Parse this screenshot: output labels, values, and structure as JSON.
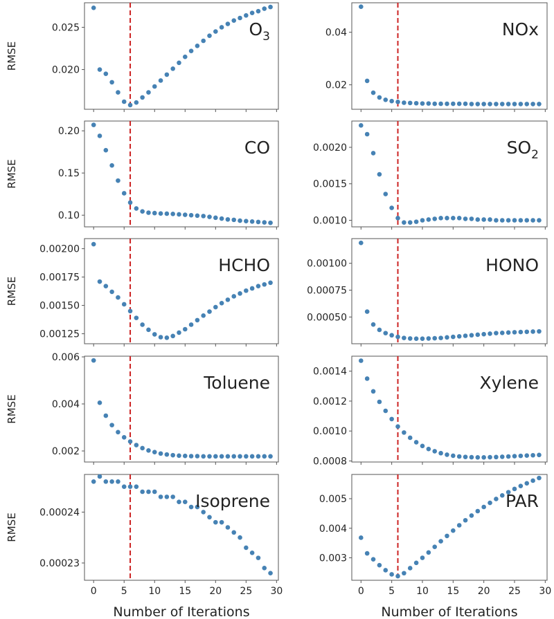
{
  "colors": {
    "points": "#4682b4",
    "marker_line": "#cc2222",
    "frame": "#555555"
  },
  "chart_data": [
    {
      "type": "scatter",
      "title": "O",
      "title_sub": "3",
      "ylabel": "RMSE",
      "xlabel": "",
      "x": [
        0,
        1,
        2,
        3,
        4,
        5,
        6,
        7,
        8,
        9,
        10,
        11,
        12,
        13,
        14,
        15,
        16,
        17,
        18,
        19,
        20,
        21,
        22,
        23,
        24,
        25,
        26,
        27,
        28,
        29
      ],
      "y": [
        0.0273,
        0.02,
        0.0195,
        0.0185,
        0.0173,
        0.0162,
        0.0158,
        0.0161,
        0.0167,
        0.0173,
        0.018,
        0.0187,
        0.0194,
        0.0201,
        0.0208,
        0.0215,
        0.0222,
        0.0228,
        0.0234,
        0.024,
        0.0245,
        0.025,
        0.0254,
        0.0258,
        0.0261,
        0.0264,
        0.0267,
        0.0269,
        0.0272,
        0.0274
      ],
      "xlim": [
        -1.5,
        30.3
      ],
      "ylim": [
        0.0153,
        0.0279
      ],
      "vline_x": 6,
      "xticks": [
        0,
        5,
        10,
        15,
        20,
        25,
        30
      ],
      "xtick_labels": [],
      "yticks": [
        0.02,
        0.025
      ],
      "ytick_labels": [
        "0.020",
        "0.025"
      ]
    },
    {
      "type": "scatter",
      "title": "NOx",
      "title_sub": "",
      "ylabel": "",
      "xlabel": "",
      "x": [
        0,
        1,
        2,
        3,
        4,
        5,
        6,
        7,
        8,
        9,
        10,
        11,
        12,
        13,
        14,
        15,
        16,
        17,
        18,
        19,
        20,
        21,
        22,
        23,
        24,
        25,
        26,
        27,
        28,
        29
      ],
      "y": [
        0.0497,
        0.0215,
        0.017,
        0.0152,
        0.0143,
        0.0138,
        0.0135,
        0.0132,
        0.0131,
        0.013,
        0.0129,
        0.0129,
        0.0128,
        0.0128,
        0.0128,
        0.0128,
        0.0128,
        0.0128,
        0.0127,
        0.0127,
        0.0127,
        0.0127,
        0.0127,
        0.0127,
        0.0127,
        0.0127,
        0.0127,
        0.0127,
        0.0127,
        0.0127
      ],
      "xlim": [
        -1.5,
        30.3
      ],
      "ylim": [
        0.0107,
        0.0512
      ],
      "vline_x": 6,
      "xticks": [
        0,
        5,
        10,
        15,
        20,
        25,
        30
      ],
      "xtick_labels": [],
      "yticks": [
        0.02,
        0.04
      ],
      "ytick_labels": [
        "0.02",
        "0.04"
      ]
    },
    {
      "type": "scatter",
      "title": "CO",
      "title_sub": "",
      "ylabel": "RMSE",
      "xlabel": "",
      "x": [
        0,
        1,
        2,
        3,
        4,
        5,
        6,
        7,
        8,
        9,
        10,
        11,
        12,
        13,
        14,
        15,
        16,
        17,
        18,
        19,
        20,
        21,
        22,
        23,
        24,
        25,
        26,
        27,
        28,
        29
      ],
      "y": [
        0.207,
        0.194,
        0.177,
        0.159,
        0.141,
        0.126,
        0.115,
        0.108,
        0.1045,
        0.103,
        0.1025,
        0.102,
        0.1018,
        0.1015,
        0.101,
        0.1005,
        0.1,
        0.0995,
        0.099,
        0.098,
        0.097,
        0.096,
        0.095,
        0.0945,
        0.0935,
        0.093,
        0.0925,
        0.092,
        0.0915,
        0.091
      ],
      "xlim": [
        -1.5,
        30.3
      ],
      "ylim": [
        0.0862,
        0.2116
      ],
      "vline_x": 6,
      "xticks": [
        0,
        5,
        10,
        15,
        20,
        25,
        30
      ],
      "xtick_labels": [],
      "yticks": [
        0.1,
        0.15,
        0.2
      ],
      "ytick_labels": [
        "0.10",
        "0.15",
        "0.20"
      ]
    },
    {
      "type": "scatter",
      "title": "SO",
      "title_sub": "2",
      "ylabel": "",
      "xlabel": "",
      "x": [
        0,
        1,
        2,
        3,
        4,
        5,
        6,
        7,
        8,
        9,
        10,
        11,
        12,
        13,
        14,
        15,
        16,
        17,
        18,
        19,
        20,
        21,
        22,
        23,
        24,
        25,
        26,
        27,
        28,
        29
      ],
      "y": [
        0.0023,
        0.00218,
        0.00192,
        0.00163,
        0.00136,
        0.00117,
        0.00103,
        0.00097,
        0.00097,
        0.00098,
        0.001,
        0.00101,
        0.00102,
        0.00103,
        0.00103,
        0.00103,
        0.00103,
        0.00102,
        0.00102,
        0.00101,
        0.00101,
        0.00101,
        0.001,
        0.001,
        0.001,
        0.001,
        0.001,
        0.001,
        0.001,
        0.001
      ],
      "xlim": [
        -1.5,
        30.3
      ],
      "ylim": [
        0.00091,
        0.00236
      ],
      "vline_x": 6,
      "xticks": [
        0,
        5,
        10,
        15,
        20,
        25,
        30
      ],
      "xtick_labels": [],
      "yticks": [
        0.001,
        0.0015,
        0.002
      ],
      "ytick_labels": [
        "0.0010",
        "0.0015",
        "0.0020"
      ]
    },
    {
      "type": "scatter",
      "title": "HCHO",
      "title_sub": "",
      "ylabel": "RMSE",
      "xlabel": "",
      "x": [
        0,
        1,
        2,
        3,
        4,
        5,
        6,
        7,
        8,
        9,
        10,
        11,
        12,
        13,
        14,
        15,
        16,
        17,
        18,
        19,
        20,
        21,
        22,
        23,
        24,
        25,
        26,
        27,
        28,
        29
      ],
      "y": [
        0.00204,
        0.00171,
        0.00167,
        0.00162,
        0.00157,
        0.00151,
        0.00145,
        0.00139,
        0.00133,
        0.001285,
        0.001245,
        0.00122,
        0.001215,
        0.00123,
        0.00126,
        0.00129,
        0.00133,
        0.00137,
        0.00141,
        0.001445,
        0.001485,
        0.00152,
        0.00155,
        0.00158,
        0.001605,
        0.00163,
        0.00165,
        0.00167,
        0.001685,
        0.0017
      ],
      "xlim": [
        -1.5,
        30.3
      ],
      "ylim": [
        0.001162,
        0.002089
      ],
      "vline_x": 6,
      "xticks": [
        0,
        5,
        10,
        15,
        20,
        25,
        30
      ],
      "xtick_labels": [],
      "yticks": [
        0.00125,
        0.0015,
        0.00175,
        0.002
      ],
      "ytick_labels": [
        "0.00125",
        "0.00150",
        "0.00175",
        "0.00200"
      ]
    },
    {
      "type": "scatter",
      "title": "HONO",
      "title_sub": "",
      "ylabel": "",
      "xlabel": "",
      "x": [
        0,
        1,
        2,
        3,
        4,
        5,
        6,
        7,
        8,
        9,
        10,
        11,
        12,
        13,
        14,
        15,
        16,
        17,
        18,
        19,
        20,
        21,
        22,
        23,
        24,
        25,
        26,
        27,
        28,
        29
      ],
      "y": [
        0.00119,
        0.00055,
        0.00043,
        0.00038,
        0.00035,
        0.00033,
        0.000315,
        0.000305,
        0.0003,
        0.000298,
        0.000298,
        0.0003,
        0.000302,
        0.000305,
        0.00031,
        0.000315,
        0.00032,
        0.000325,
        0.00033,
        0.000335,
        0.00034,
        0.000345,
        0.00035,
        0.000352,
        0.000355,
        0.000358,
        0.00036,
        0.000362,
        0.000364,
        0.000366
      ],
      "xlim": [
        -1.5,
        30.3
      ],
      "ylim": [
        0.000251,
        0.00123
      ],
      "vline_x": 6,
      "xticks": [
        0,
        5,
        10,
        15,
        20,
        25,
        30
      ],
      "xtick_labels": [],
      "yticks": [
        0.0005,
        0.00075,
        0.001
      ],
      "ytick_labels": [
        "0.00050",
        "0.00075",
        "0.00100"
      ]
    },
    {
      "type": "scatter",
      "title": "Toluene",
      "title_sub": "",
      "ylabel": "RMSE",
      "xlabel": "",
      "x": [
        0,
        1,
        2,
        3,
        4,
        5,
        6,
        7,
        8,
        9,
        10,
        11,
        12,
        13,
        14,
        15,
        16,
        17,
        18,
        19,
        20,
        21,
        22,
        23,
        24,
        25,
        26,
        27,
        28,
        29
      ],
      "y": [
        0.00585,
        0.00405,
        0.0035,
        0.0031,
        0.0028,
        0.00258,
        0.0024,
        0.00225,
        0.00212,
        0.00202,
        0.00195,
        0.00189,
        0.00185,
        0.00182,
        0.0018,
        0.00179,
        0.00178,
        0.00178,
        0.00177,
        0.00177,
        0.00177,
        0.00177,
        0.00177,
        0.00177,
        0.00177,
        0.00177,
        0.00177,
        0.00177,
        0.00177,
        0.00177
      ],
      "xlim": [
        -1.5,
        30.3
      ],
      "ylim": [
        0.00153,
        0.00603
      ],
      "vline_x": 6,
      "xticks": [
        0,
        5,
        10,
        15,
        20,
        25,
        30
      ],
      "xtick_labels": [],
      "yticks": [
        0.002,
        0.004,
        0.006
      ],
      "ytick_labels": [
        "0.002",
        "0.004",
        "0.006"
      ]
    },
    {
      "type": "scatter",
      "title": "Xylene",
      "title_sub": "",
      "ylabel": "",
      "xlabel": "",
      "x": [
        0,
        1,
        2,
        3,
        4,
        5,
        6,
        7,
        8,
        9,
        10,
        11,
        12,
        13,
        14,
        15,
        16,
        17,
        18,
        19,
        20,
        21,
        22,
        23,
        24,
        25,
        26,
        27,
        28,
        29
      ],
      "y": [
        0.00147,
        0.00135,
        0.001265,
        0.001195,
        0.001135,
        0.00108,
        0.00103,
        0.00099,
        0.000955,
        0.000925,
        0.0009,
        0.00088,
        0.000865,
        0.000852,
        0.000842,
        0.000835,
        0.00083,
        0.000827,
        0.000825,
        0.000824,
        0.000824,
        0.000825,
        0.000826,
        0.000828,
        0.00083,
        0.000832,
        0.000834,
        0.000836,
        0.000838,
        0.00084
      ],
      "xlim": [
        -1.5,
        30.3
      ],
      "ylim": [
        0.000793,
        0.0015
      ],
      "vline_x": 6,
      "xticks": [
        0,
        5,
        10,
        15,
        20,
        25,
        30
      ],
      "xtick_labels": [],
      "yticks": [
        0.0008,
        0.001,
        0.0012,
        0.0014
      ],
      "ytick_labels": [
        "0.0008",
        "0.0010",
        "0.0012",
        "0.0014"
      ]
    },
    {
      "type": "scatter",
      "title": "Isoprene",
      "title_sub": "",
      "ylabel": "RMSE",
      "xlabel": "Number of Iterations",
      "x": [
        0,
        1,
        2,
        3,
        4,
        5,
        6,
        7,
        8,
        9,
        10,
        11,
        12,
        13,
        14,
        15,
        16,
        17,
        18,
        19,
        20,
        21,
        22,
        23,
        24,
        25,
        26,
        27,
        28,
        29
      ],
      "y": [
        0.000246,
        0.000247,
        0.000246,
        0.000246,
        0.000246,
        0.000245,
        0.000245,
        0.000245,
        0.000244,
        0.000244,
        0.000244,
        0.000243,
        0.000243,
        0.000243,
        0.000242,
        0.000242,
        0.000241,
        0.000241,
        0.00024,
        0.000239,
        0.000238,
        0.000238,
        0.000237,
        0.000236,
        0.000235,
        0.000233,
        0.000232,
        0.000231,
        0.000229,
        0.000228
      ],
      "xlim": [
        -1.5,
        30.3
      ],
      "ylim": [
        0.0002266,
        0.0002474
      ],
      "vline_x": 6,
      "xticks": [
        0,
        5,
        10,
        15,
        20,
        25,
        30
      ],
      "xtick_labels": [
        "0",
        "5",
        "10",
        "15",
        "20",
        "25",
        "30"
      ],
      "yticks": [
        0.00023,
        0.00024
      ],
      "ytick_labels": [
        "0.00023",
        "0.00024"
      ]
    },
    {
      "type": "scatter",
      "title": "PAR",
      "title_sub": "",
      "ylabel": "",
      "xlabel": "Number of Iterations",
      "x": [
        0,
        1,
        2,
        3,
        4,
        5,
        6,
        7,
        8,
        9,
        10,
        11,
        12,
        13,
        14,
        15,
        16,
        17,
        18,
        19,
        20,
        21,
        22,
        23,
        24,
        25,
        26,
        27,
        28,
        29
      ],
      "y": [
        0.00368,
        0.00315,
        0.00295,
        0.00275,
        0.00258,
        0.00244,
        0.00238,
        0.00248,
        0.00265,
        0.00283,
        0.003,
        0.00318,
        0.00337,
        0.00356,
        0.00374,
        0.00392,
        0.0041,
        0.00427,
        0.00443,
        0.00458,
        0.00472,
        0.00486,
        0.00499,
        0.00511,
        0.00522,
        0.00533,
        0.00543,
        0.00552,
        0.00561,
        0.0057
      ],
      "xlim": [
        -1.5,
        30.3
      ],
      "ylim": [
        0.00224,
        0.00582
      ],
      "vline_x": 6,
      "xticks": [
        0,
        5,
        10,
        15,
        20,
        25,
        30
      ],
      "xtick_labels": [
        "0",
        "5",
        "10",
        "15",
        "20",
        "25",
        "30"
      ],
      "yticks": [
        0.003,
        0.004,
        0.005
      ],
      "ytick_labels": [
        "0.003",
        "0.004",
        "0.005"
      ]
    }
  ]
}
